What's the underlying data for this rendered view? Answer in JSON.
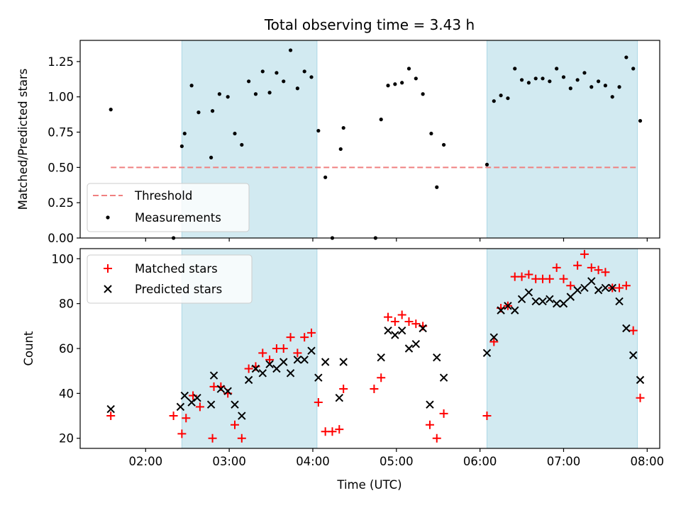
{
  "title": "Total observing time = 3.43 h",
  "colors": {
    "shade": "#add8e6",
    "threshold": "#f08080",
    "matched": "#ff0000",
    "predicted": "#000000",
    "measurement": "#000000"
  },
  "chart_data": [
    {
      "type": "scatter",
      "ylabel": "Matched/Predicted stars",
      "xlabel": "",
      "ylim": [
        0,
        1.4
      ],
      "yticks": [
        "0.00",
        "0.25",
        "0.50",
        "0.75",
        "1.00",
        "1.25"
      ],
      "grid": false,
      "legend_position": "lower-left",
      "shaded_intervals": [
        [
          "02:26",
          "04:03"
        ],
        [
          "06:05",
          "07:53"
        ]
      ],
      "threshold": {
        "name": "Threshold",
        "value": 0.5,
        "x_range": [
          "01:35",
          "07:53"
        ]
      },
      "series": [
        {
          "name": "Measurements",
          "points": [
            [
              "01:35",
              0.91
            ],
            [
              "02:20",
              0.0
            ],
            [
              "02:26",
              0.65
            ],
            [
              "02:28",
              0.74
            ],
            [
              "02:33",
              1.08
            ],
            [
              "02:38",
              0.89
            ],
            [
              "02:47",
              0.57
            ],
            [
              "02:48",
              0.9
            ],
            [
              "02:53",
              1.02
            ],
            [
              "02:59",
              1.0
            ],
            [
              "03:04",
              0.74
            ],
            [
              "03:09",
              0.66
            ],
            [
              "03:14",
              1.11
            ],
            [
              "03:19",
              1.02
            ],
            [
              "03:24",
              1.18
            ],
            [
              "03:29",
              1.03
            ],
            [
              "03:34",
              1.17
            ],
            [
              "03:39",
              1.11
            ],
            [
              "03:44",
              1.33
            ],
            [
              "03:49",
              1.06
            ],
            [
              "03:54",
              1.18
            ],
            [
              "03:59",
              1.14
            ],
            [
              "04:04",
              0.76
            ],
            [
              "04:09",
              0.43
            ],
            [
              "04:14",
              0.0
            ],
            [
              "04:20",
              0.63
            ],
            [
              "04:22",
              0.78
            ],
            [
              "04:45",
              0.0
            ],
            [
              "04:49",
              0.84
            ],
            [
              "04:54",
              1.08
            ],
            [
              "04:59",
              1.09
            ],
            [
              "05:04",
              1.1
            ],
            [
              "05:09",
              1.2
            ],
            [
              "05:14",
              1.13
            ],
            [
              "05:19",
              1.02
            ],
            [
              "05:25",
              0.74
            ],
            [
              "05:29",
              0.36
            ],
            [
              "05:34",
              0.66
            ],
            [
              "06:05",
              0.52
            ],
            [
              "06:10",
              0.97
            ],
            [
              "06:15",
              1.01
            ],
            [
              "06:20",
              0.99
            ],
            [
              "06:25",
              1.2
            ],
            [
              "06:30",
              1.12
            ],
            [
              "06:35",
              1.1
            ],
            [
              "06:40",
              1.13
            ],
            [
              "06:45",
              1.13
            ],
            [
              "06:50",
              1.11
            ],
            [
              "06:55",
              1.2
            ],
            [
              "07:00",
              1.14
            ],
            [
              "07:05",
              1.06
            ],
            [
              "07:10",
              1.12
            ],
            [
              "07:15",
              1.17
            ],
            [
              "07:20",
              1.07
            ],
            [
              "07:25",
              1.11
            ],
            [
              "07:30",
              1.08
            ],
            [
              "07:35",
              1.0
            ],
            [
              "07:40",
              1.07
            ],
            [
              "07:45",
              1.28
            ],
            [
              "07:50",
              1.2
            ],
            [
              "07:55",
              0.83
            ]
          ]
        }
      ]
    },
    {
      "type": "scatter",
      "ylabel": "Count",
      "xlabel": "Time (UTC)",
      "ylim": [
        15.5,
        104.5
      ],
      "yticks": [
        "20",
        "40",
        "60",
        "80",
        "100"
      ],
      "xticks": [
        "02:00",
        "03:00",
        "04:00",
        "05:00",
        "06:00",
        "07:00",
        "08:00"
      ],
      "grid": false,
      "legend_position": "upper-left",
      "shaded_intervals": [
        [
          "02:26",
          "04:03"
        ],
        [
          "06:05",
          "07:53"
        ]
      ],
      "series": [
        {
          "name": "Matched stars",
          "marker": "+",
          "points": [
            [
              "01:35",
              30
            ],
            [
              "02:20",
              30
            ],
            [
              "02:26",
              22
            ],
            [
              "02:29",
              29
            ],
            [
              "02:34",
              39
            ],
            [
              "02:39",
              34
            ],
            [
              "02:48",
              20
            ],
            [
              "02:49",
              43
            ],
            [
              "02:54",
              43
            ],
            [
              "02:59",
              40
            ],
            [
              "03:04",
              26
            ],
            [
              "03:09",
              20
            ],
            [
              "03:14",
              51
            ],
            [
              "03:19",
              52
            ],
            [
              "03:24",
              58
            ],
            [
              "03:29",
              55
            ],
            [
              "03:34",
              60
            ],
            [
              "03:39",
              60
            ],
            [
              "03:44",
              65
            ],
            [
              "03:49",
              58
            ],
            [
              "03:54",
              65
            ],
            [
              "03:59",
              67
            ],
            [
              "04:04",
              36
            ],
            [
              "04:09",
              23
            ],
            [
              "04:14",
              23
            ],
            [
              "04:19",
              24
            ],
            [
              "04:22",
              42
            ],
            [
              "04:44",
              42
            ],
            [
              "04:49",
              47
            ],
            [
              "04:54",
              74
            ],
            [
              "04:59",
              72
            ],
            [
              "05:04",
              75
            ],
            [
              "05:09",
              72
            ],
            [
              "05:14",
              71
            ],
            [
              "05:19",
              70
            ],
            [
              "05:24",
              26
            ],
            [
              "05:29",
              20
            ],
            [
              "05:34",
              31
            ],
            [
              "06:05",
              30
            ],
            [
              "06:10",
              63
            ],
            [
              "06:15",
              78
            ],
            [
              "06:20",
              79
            ],
            [
              "06:25",
              92
            ],
            [
              "06:30",
              92
            ],
            [
              "06:35",
              93
            ],
            [
              "06:40",
              91
            ],
            [
              "06:45",
              91
            ],
            [
              "06:50",
              91
            ],
            [
              "06:55",
              96
            ],
            [
              "07:00",
              91
            ],
            [
              "07:05",
              88
            ],
            [
              "07:10",
              97
            ],
            [
              "07:15",
              102
            ],
            [
              "07:20",
              96
            ],
            [
              "07:25",
              95
            ],
            [
              "07:30",
              94
            ],
            [
              "07:35",
              87
            ],
            [
              "07:40",
              87
            ],
            [
              "07:45",
              88
            ],
            [
              "07:50",
              68
            ],
            [
              "07:55",
              38
            ]
          ]
        },
        {
          "name": "Predicted stars",
          "marker": "x",
          "points": [
            [
              "01:35",
              33
            ],
            [
              "02:25",
              34
            ],
            [
              "02:28",
              39
            ],
            [
              "02:33",
              36
            ],
            [
              "02:37",
              38
            ],
            [
              "02:47",
              35
            ],
            [
              "02:49",
              48
            ],
            [
              "02:54",
              42
            ],
            [
              "02:59",
              41
            ],
            [
              "03:04",
              35
            ],
            [
              "03:09",
              30
            ],
            [
              "03:14",
              46
            ],
            [
              "03:19",
              51
            ],
            [
              "03:24",
              49
            ],
            [
              "03:29",
              53
            ],
            [
              "03:34",
              51
            ],
            [
              "03:39",
              54
            ],
            [
              "03:44",
              49
            ],
            [
              "03:49",
              55
            ],
            [
              "03:54",
              55
            ],
            [
              "03:59",
              59
            ],
            [
              "04:04",
              47
            ],
            [
              "04:09",
              54
            ],
            [
              "04:19",
              38
            ],
            [
              "04:22",
              54
            ],
            [
              "04:49",
              56
            ],
            [
              "04:54",
              68
            ],
            [
              "04:59",
              66
            ],
            [
              "05:04",
              68
            ],
            [
              "05:09",
              60
            ],
            [
              "05:14",
              62
            ],
            [
              "05:19",
              69
            ],
            [
              "05:24",
              35
            ],
            [
              "05:29",
              56
            ],
            [
              "05:34",
              47
            ],
            [
              "06:05",
              58
            ],
            [
              "06:10",
              65
            ],
            [
              "06:15",
              77
            ],
            [
              "06:20",
              79
            ],
            [
              "06:25",
              77
            ],
            [
              "06:30",
              82
            ],
            [
              "06:35",
              85
            ],
            [
              "06:40",
              81
            ],
            [
              "06:45",
              81
            ],
            [
              "06:50",
              82
            ],
            [
              "06:55",
              80
            ],
            [
              "07:00",
              80
            ],
            [
              "07:05",
              83
            ],
            [
              "07:10",
              86
            ],
            [
              "07:15",
              87
            ],
            [
              "07:20",
              90
            ],
            [
              "07:25",
              86
            ],
            [
              "07:30",
              87
            ],
            [
              "07:35",
              87
            ],
            [
              "07:40",
              81
            ],
            [
              "07:45",
              69
            ],
            [
              "07:50",
              57
            ],
            [
              "07:55",
              46
            ]
          ]
        }
      ]
    }
  ]
}
